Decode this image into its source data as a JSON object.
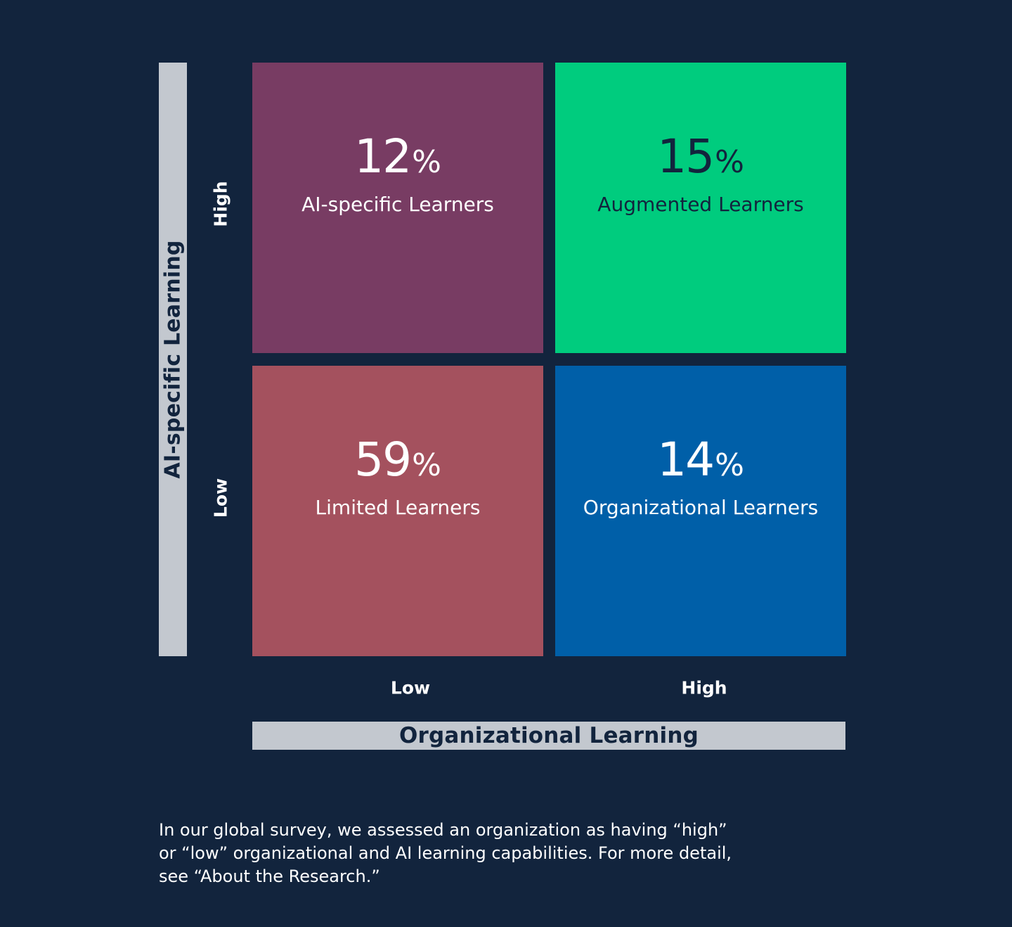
{
  "y_axis": {
    "title": "AI-specific Learning",
    "levels": {
      "high": "High",
      "low": "Low"
    }
  },
  "x_axis": {
    "title": "Organizational Learning",
    "levels": {
      "low": "Low",
      "high": "High"
    }
  },
  "quadrants": {
    "top_left": {
      "value": "12",
      "unit": "%",
      "label": "AI-specific Learners",
      "color": "#783c63"
    },
    "top_right": {
      "value": "15",
      "unit": "%",
      "label": "Augmented Learners",
      "color": "#00cc7e"
    },
    "bottom_left": {
      "value": "59",
      "unit": "%",
      "label": "Limited Learners",
      "color": "#a4515e"
    },
    "bottom_right": {
      "value": "14",
      "unit": "%",
      "label": "Organizational Learners",
      "color": "#005fa8"
    }
  },
  "colors": {
    "background": "#12243d",
    "axis_bar": "#c3c8cf",
    "top_right_text": "#12243d"
  },
  "caption": {
    "lines": [
      "In our global survey, we assessed an organization as having “high”",
      "or “low” organizational and AI learning capabilities. For more detail,",
      "see “About the Research.”"
    ]
  }
}
